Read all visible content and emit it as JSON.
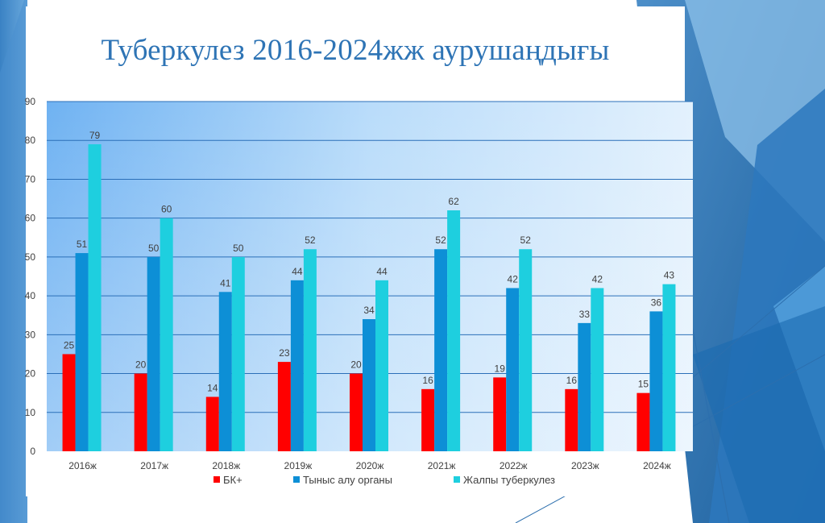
{
  "slide": {
    "title": "Туберкулез 2016-2024жж аурушаңдығы"
  },
  "colors": {
    "slide_blue_dark": "#1c5f9c",
    "slide_blue_mid": "#3a82c4",
    "slide_blue_light": "#8ec2ea",
    "title_color": "#2e74b5"
  },
  "chart_data": {
    "type": "bar",
    "title": "Туберкулез 2016-2024жж аурушаңдығы",
    "categories": [
      "2016ж",
      "2017ж",
      "2018ж",
      "2019ж",
      "2020ж",
      "2021ж",
      "2022ж",
      "2023ж",
      "2024ж"
    ],
    "series": [
      {
        "name": "БК+",
        "color": "#ff0000",
        "values": [
          25,
          20,
          14,
          23,
          20,
          16,
          19,
          16,
          15
        ]
      },
      {
        "name": "Тыныс алу органы",
        "color": "#0d8fd6",
        "values": [
          51,
          50,
          41,
          44,
          34,
          52,
          42,
          33,
          36
        ]
      },
      {
        "name": "Жалпы туберкулез",
        "color": "#1ecfdf",
        "values": [
          79,
          60,
          50,
          52,
          44,
          62,
          52,
          42,
          43
        ]
      }
    ],
    "yticks": [
      0,
      10,
      20,
      30,
      40,
      50,
      60,
      70,
      80,
      90
    ],
    "ylim": [
      0,
      90
    ],
    "xlabel": "",
    "ylabel": "",
    "grid": true,
    "legend_position": "bottom",
    "data_labels": true
  }
}
